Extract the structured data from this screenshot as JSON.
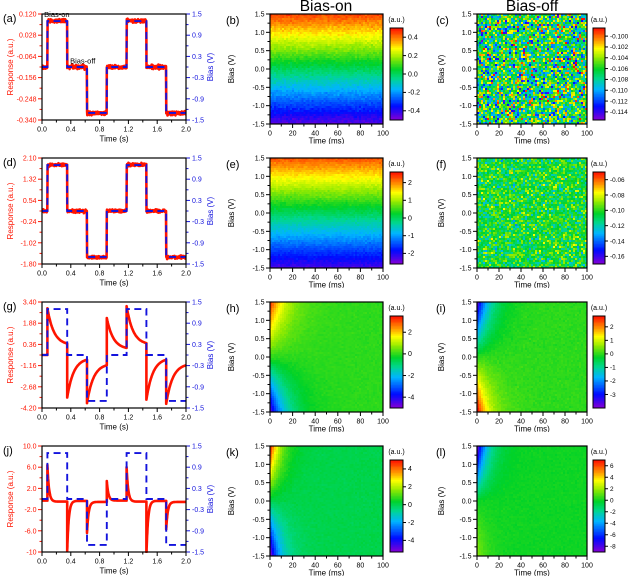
{
  "figure": {
    "column_titles": [
      "Bias-on",
      "Bias-off"
    ],
    "colors": {
      "response_red": "#fe1400",
      "bias_blue": "#1414dd",
      "axis_black": "#000000"
    }
  },
  "chart_data": [
    {
      "id": "a",
      "type": "line",
      "panel_label": "(a)",
      "xlabel": "Time (s)",
      "ylabel_left": "Response (a.u.)",
      "ylabel_right": "Bias (V)",
      "xlim": [
        0,
        2
      ],
      "x_ticks": [
        0,
        0.4,
        0.8,
        1.2,
        1.6,
        2.0
      ],
      "x_tick_labels": [
        "0.0",
        "0.4",
        "0.8",
        "1.2",
        "1.6",
        "2.0"
      ],
      "ylim_left": [
        -0.34,
        0.12
      ],
      "left_tick_values": [
        0.12,
        0.028,
        -0.064,
        -0.156,
        -0.248,
        -0.34
      ],
      "left_tick_labels": [
        "0.120",
        "0.028",
        "-0.064",
        "-0.156",
        "-0.248",
        "-0.340"
      ],
      "ylim_right": [
        -1.5,
        1.5
      ],
      "right_tick_values": [
        1.5,
        0.9,
        0.3,
        -0.3,
        -0.9,
        -1.5
      ],
      "right_tick_labels": [
        "1.5",
        "0.9",
        "0.3",
        "-0.3",
        "-0.9",
        "-1.5"
      ],
      "bias_edges": [
        0.075,
        0.35,
        0.625,
        0.9,
        1.175,
        1.45,
        1.725
      ],
      "bias_levels": [
        0,
        1.3,
        0,
        -1.3,
        0,
        1.3,
        0,
        -1.3
      ],
      "response": {
        "mode": "follow",
        "gain": 0.1538,
        "offset": -0.11,
        "noise": 0.004
      },
      "annotations": [
        {
          "text": "Bias-on",
          "x": 0.03,
          "y": 0.107
        },
        {
          "text": "Bias-off",
          "x": 0.39,
          "y": -0.095
        }
      ]
    },
    {
      "id": "b",
      "type": "heatmap",
      "panel_label": "(b)",
      "xlabel": "Time (ms)",
      "ylabel": "Bias (V)",
      "xlim": [
        0,
        100
      ],
      "x_ticks": [
        0,
        20,
        40,
        60,
        80,
        100
      ],
      "x_tick_labels": [
        "0",
        "20",
        "40",
        "60",
        "80",
        "100"
      ],
      "ylim": [
        -1.5,
        1.5
      ],
      "y_ticks": [
        1.5,
        1.0,
        0.5,
        0.0,
        -0.5,
        -1.0,
        -1.5
      ],
      "y_tick_labels": [
        "1.5",
        "1.0",
        "0.5",
        "0.0",
        "-0.5",
        "-1.0",
        "-1.5"
      ],
      "colorbar": {
        "label": "(a.u.)",
        "range": [
          -0.5,
          0.5
        ],
        "tick_values": [
          0.4,
          0.2,
          0.0,
          -0.2,
          -0.4
        ],
        "tick_labels": [
          "0.4",
          "0.2",
          "0.0",
          "-0.2",
          "-0.4"
        ]
      },
      "model": {
        "kind": "gradient",
        "gain": 0.3,
        "offset": 0,
        "noise": 0.015
      }
    },
    {
      "id": "c",
      "type": "heatmap",
      "panel_label": "(c)",
      "xlabel": "Time (ms)",
      "ylabel": "Bias (V)",
      "xlim": [
        0,
        100
      ],
      "x_ticks": [
        0,
        20,
        40,
        60,
        80,
        100
      ],
      "x_tick_labels": [
        "0",
        "20",
        "40",
        "60",
        "80",
        "100"
      ],
      "ylim": [
        -1.5,
        1.5
      ],
      "y_ticks": [
        1.5,
        1.0,
        0.5,
        0.0,
        -0.5,
        -1.0,
        -1.5
      ],
      "y_tick_labels": [
        "1.5",
        "1.0",
        "0.5",
        "0.0",
        "-0.5",
        "-1.0",
        "-1.5"
      ],
      "colorbar": {
        "label": "(a.u.)",
        "range": [
          -0.1155,
          -0.0985
        ],
        "tick_values": [
          -0.1,
          -0.102,
          -0.104,
          -0.106,
          -0.108,
          -0.11,
          -0.112,
          -0.114
        ],
        "tick_labels": [
          "-0.100",
          "-0.102",
          "-0.104",
          "-0.106",
          "-0.108",
          "-0.110",
          "-0.112",
          "-0.114"
        ]
      },
      "model": {
        "kind": "noise",
        "base": -0.1065,
        "sigma": 0.0035
      }
    },
    {
      "id": "d",
      "type": "line",
      "panel_label": "(d)",
      "xlabel": "Time (s)",
      "ylabel_left": "Response (a.u.)",
      "ylabel_right": "Bias (V)",
      "xlim": [
        0,
        2
      ],
      "x_ticks": [
        0,
        0.4,
        0.8,
        1.2,
        1.6,
        2.0
      ],
      "x_tick_labels": [
        "0.0",
        "0.4",
        "0.8",
        "1.2",
        "1.6",
        "2.0"
      ],
      "ylim_left": [
        -1.8,
        2.1
      ],
      "left_tick_values": [
        2.1,
        1.32,
        0.54,
        -0.24,
        -1.02,
        -1.8
      ],
      "left_tick_labels": [
        "2.10",
        "1.32",
        "0.54",
        "-0.24",
        "-1.02",
        "-1.80"
      ],
      "ylim_right": [
        -1.5,
        1.5
      ],
      "right_tick_values": [
        1.5,
        0.9,
        0.3,
        -0.3,
        -0.9,
        -1.5
      ],
      "right_tick_labels": [
        "1.5",
        "0.9",
        "0.3",
        "-0.3",
        "-0.9",
        "-1.5"
      ],
      "bias_edges": [
        0.075,
        0.35,
        0.625,
        0.9,
        1.175,
        1.45,
        1.725
      ],
      "bias_levels": [
        0,
        1.3,
        0,
        -1.3,
        0,
        1.3,
        0,
        -1.3
      ],
      "response": {
        "mode": "follow",
        "gain": 1.3077,
        "offset": 0.15,
        "noise": 0.028
      },
      "annotations": []
    },
    {
      "id": "e",
      "type": "heatmap",
      "panel_label": "(e)",
      "xlabel": "Time (ms)",
      "ylabel": "Bias (V)",
      "xlim": [
        0,
        100
      ],
      "x_ticks": [
        0,
        20,
        40,
        60,
        80,
        100
      ],
      "x_tick_labels": [
        "0",
        "20",
        "40",
        "60",
        "80",
        "100"
      ],
      "ylim": [
        -1.5,
        1.5
      ],
      "y_ticks": [
        1.5,
        1.0,
        0.5,
        0.0,
        -0.5,
        -1.0,
        -1.5
      ],
      "y_tick_labels": [
        "1.5",
        "1.0",
        "0.5",
        "0.0",
        "-0.5",
        "-1.0",
        "-1.5"
      ],
      "colorbar": {
        "label": "(a.u.)",
        "range": [
          -2.6,
          2.6
        ],
        "tick_values": [
          2,
          1,
          0,
          -1,
          -2
        ],
        "tick_labels": [
          "2",
          "1",
          "0",
          "-1",
          "-2"
        ]
      },
      "model": {
        "kind": "gradient",
        "gain": 1.5,
        "offset": 0,
        "noise": 0.06
      }
    },
    {
      "id": "f",
      "type": "heatmap",
      "panel_label": "(f)",
      "xlabel": "Time (ms)",
      "ylabel": "Bias (V)",
      "xlim": [
        0,
        100
      ],
      "x_ticks": [
        0,
        20,
        40,
        60,
        80,
        100
      ],
      "x_tick_labels": [
        "0",
        "20",
        "40",
        "60",
        "80",
        "100"
      ],
      "ylim": [
        -1.5,
        1.5
      ],
      "y_ticks": [
        1.5,
        1.0,
        0.5,
        0.0,
        -0.5,
        -1.0,
        -1.5
      ],
      "y_tick_labels": [
        "1.5",
        "1.0",
        "0.5",
        "0.0",
        "-0.5",
        "-1.0",
        "-1.5"
      ],
      "colorbar": {
        "label": "(a.u.)",
        "range": [
          -0.17,
          -0.05
        ],
        "tick_values": [
          -0.06,
          -0.08,
          -0.1,
          -0.12,
          -0.14,
          -0.16
        ],
        "tick_labels": [
          "-0.06",
          "-0.08",
          "-0.10",
          "-0.12",
          "-0.14",
          "-0.16"
        ]
      },
      "model": {
        "kind": "noise",
        "base": -0.104,
        "sigma": 0.011
      }
    },
    {
      "id": "g",
      "type": "line",
      "panel_label": "(g)",
      "xlabel": "Time (s)",
      "ylabel_left": "Response (a.u.)",
      "ylabel_right": "Bias (V)",
      "xlim": [
        0,
        2
      ],
      "x_ticks": [
        0,
        0.4,
        0.8,
        1.2,
        1.6,
        2.0
      ],
      "x_tick_labels": [
        "0.0",
        "0.4",
        "0.8",
        "1.2",
        "1.6",
        "2.0"
      ],
      "ylim_left": [
        -4.2,
        3.4
      ],
      "left_tick_values": [
        3.4,
        1.88,
        0.36,
        -1.16,
        -2.68,
        -4.2
      ],
      "left_tick_labels": [
        "3.40",
        "1.88",
        "0.36",
        "-1.16",
        "-2.68",
        "-4.20"
      ],
      "ylim_right": [
        -1.5,
        1.5
      ],
      "right_tick_values": [
        1.5,
        0.9,
        0.3,
        -0.3,
        -0.9,
        -1.5
      ],
      "right_tick_labels": [
        "1.5",
        "0.9",
        "0.3",
        "-0.3",
        "-0.9",
        "-1.5"
      ],
      "bias_edges": [
        0.075,
        0.35,
        0.625,
        0.9,
        1.175,
        1.45,
        1.725
      ],
      "bias_levels": [
        0,
        1.3,
        0,
        -1.3,
        0,
        1.3,
        0,
        -1.3
      ],
      "response": {
        "mode": "transient",
        "tau": 0.09,
        "segments": [
          {
            "start": -0.4,
            "steady": -0.4
          },
          {
            "start": 2.95,
            "steady": 0.3
          },
          {
            "start": -3.45,
            "steady": -0.6
          },
          {
            "start": -3.85,
            "steady": -1.0
          },
          {
            "start": 2.25,
            "steady": 0.0
          },
          {
            "start": 3.1,
            "steady": 0.32
          },
          {
            "start": -3.6,
            "steady": -0.6
          },
          {
            "start": -3.9,
            "steady": -1.0
          }
        ]
      },
      "annotations": []
    },
    {
      "id": "h",
      "type": "heatmap",
      "panel_label": "(h)",
      "xlabel": "Time (ms)",
      "ylabel": "Bias (V)",
      "xlim": [
        0,
        100
      ],
      "x_ticks": [
        0,
        20,
        40,
        60,
        80,
        100
      ],
      "x_tick_labels": [
        "0",
        "20",
        "40",
        "60",
        "80",
        "100"
      ],
      "ylim": [
        -1.5,
        1.5
      ],
      "y_ticks": [
        1.5,
        1.0,
        0.5,
        0.0,
        -0.5,
        -1.0,
        -1.5
      ],
      "y_tick_labels": [
        "1.5",
        "1.0",
        "0.5",
        "0.0",
        "-0.5",
        "-1.0",
        "-1.5"
      ],
      "colorbar": {
        "label": "(a.u.)",
        "range": [
          -5,
          3.5
        ],
        "tick_values": [
          2,
          0,
          -2,
          -4
        ],
        "tick_labels": [
          "2",
          "0",
          "-2",
          "-4"
        ]
      },
      "model": {
        "kind": "transient",
        "c_pos": 2.1,
        "c_neg": 3.0,
        "tau_ms": 14,
        "noise": 0.05
      }
    },
    {
      "id": "i",
      "type": "heatmap",
      "panel_label": "(i)",
      "xlabel": "Time (ms)",
      "ylabel": "Bias (V)",
      "xlim": [
        0,
        100
      ],
      "x_ticks": [
        0,
        20,
        40,
        60,
        80,
        100
      ],
      "x_tick_labels": [
        "0",
        "20",
        "40",
        "60",
        "80",
        "100"
      ],
      "ylim": [
        -1.5,
        1.5
      ],
      "y_ticks": [
        1.5,
        1.0,
        0.5,
        0.0,
        -0.5,
        -1.0,
        -1.5
      ],
      "y_tick_labels": [
        "1.5",
        "1.0",
        "0.5",
        "0.0",
        "-0.5",
        "-1.0",
        "-1.5"
      ],
      "colorbar": {
        "label": "(a.u.)",
        "range": [
          -4,
          2.8
        ],
        "tick_values": [
          2,
          1,
          0,
          -1,
          -2,
          -3
        ],
        "tick_labels": [
          "2",
          "1",
          "0",
          "-1",
          "-2",
          "-3"
        ]
      },
      "model": {
        "kind": "transient",
        "c_pos": -2.4,
        "c_neg": -1.9,
        "tau_ms": 11,
        "noise": 0.05
      }
    },
    {
      "id": "j",
      "type": "line",
      "panel_label": "(j)",
      "xlabel": "Time (s)",
      "ylabel_left": "Response (a.u.)",
      "ylabel_right": "Bias (V)",
      "xlim": [
        0,
        2
      ],
      "x_ticks": [
        0,
        0.4,
        0.8,
        1.2,
        1.6,
        2.0
      ],
      "x_tick_labels": [
        "0.0",
        "0.4",
        "0.8",
        "1.2",
        "1.6",
        "2.0"
      ],
      "ylim_left": [
        -10,
        10
      ],
      "left_tick_values": [
        10.0,
        6.0,
        2.0,
        -2.0,
        -6.0,
        -10
      ],
      "left_tick_labels": [
        "10.0",
        "6.0",
        "2.0",
        "-2.0",
        "-6.0",
        "-10"
      ],
      "ylim_right": [
        -1.5,
        1.5
      ],
      "right_tick_values": [
        1.5,
        0.9,
        0.3,
        -0.3,
        -0.9,
        -1.5
      ],
      "right_tick_labels": [
        "1.5",
        "0.9",
        "0.3",
        "-0.3",
        "-0.9",
        "-1.5"
      ],
      "bias_edges": [
        0.075,
        0.35,
        0.625,
        0.9,
        1.175,
        1.45,
        1.725
      ],
      "bias_levels": [
        0,
        1.3,
        0,
        -1.3,
        0,
        1.3,
        0,
        -1.3
      ],
      "response": {
        "mode": "transient",
        "tau": 0.022,
        "segments": [
          {
            "start": -0.3,
            "steady": -0.3
          },
          {
            "start": 6.4,
            "steady": -0.5
          },
          {
            "start": -9.8,
            "steady": -0.35
          },
          {
            "start": -6.4,
            "steady": -0.55
          },
          {
            "start": 3.4,
            "steady": -0.3
          },
          {
            "start": 6.0,
            "steady": -0.5
          },
          {
            "start": -10.8,
            "steady": -0.35
          },
          {
            "start": -5.7,
            "steady": -0.55
          }
        ]
      },
      "annotations": []
    },
    {
      "id": "k",
      "type": "heatmap",
      "panel_label": "(k)",
      "xlabel": "Time (ms)",
      "ylabel": "Bias (V)",
      "xlim": [
        0,
        100
      ],
      "x_ticks": [
        0,
        20,
        40,
        60,
        80,
        100
      ],
      "x_tick_labels": [
        "0",
        "20",
        "40",
        "60",
        "80",
        "100"
      ],
      "ylim": [
        -1.5,
        1.5
      ],
      "y_ticks": [
        1.5,
        1.0,
        0.5,
        0.0,
        -0.5,
        -1.0,
        -1.5
      ],
      "y_tick_labels": [
        "1.5",
        "1.0",
        "0.5",
        "0.0",
        "-0.5",
        "-1.0",
        "-1.5"
      ],
      "colorbar": {
        "label": "(a.u.)",
        "range": [
          -5.3,
          5.0
        ],
        "tick_values": [
          4,
          2,
          0,
          -2,
          -4
        ],
        "tick_labels": [
          "4",
          "2",
          "0",
          "-2",
          "-4"
        ]
      },
      "model": {
        "kind": "transient",
        "c_pos": 3.1,
        "c_neg": 3.4,
        "tau_ms": 9,
        "noise": 0.07
      }
    },
    {
      "id": "l",
      "type": "heatmap",
      "panel_label": "(l)",
      "xlabel": "Time (ms)",
      "ylabel": "Bias (V)",
      "xlim": [
        0,
        100
      ],
      "x_ticks": [
        0,
        20,
        40,
        60,
        80,
        100
      ],
      "x_tick_labels": [
        "0",
        "20",
        "40",
        "60",
        "80",
        "100"
      ],
      "ylim": [
        -1.5,
        1.5
      ],
      "y_ticks": [
        1.5,
        1.0,
        0.5,
        0.0,
        -0.5,
        -1.0,
        -1.5
      ],
      "y_tick_labels": [
        "1.5",
        "1.0",
        "0.5",
        "0.0",
        "-0.5",
        "-1.0",
        "-1.5"
      ],
      "colorbar": {
        "label": "(a.u.)",
        "range": [
          -9,
          7
        ],
        "tick_values": [
          6,
          4,
          2,
          0,
          -2,
          -4,
          -6,
          -8
        ],
        "tick_labels": [
          "6",
          "4",
          "2",
          "0",
          "-2",
          "-4",
          "-6",
          "-8"
        ]
      },
      "model": {
        "kind": "transient",
        "c_pos": -5.6,
        "c_neg": -1.1,
        "tau_ms": 9,
        "noise": 0.08
      }
    }
  ]
}
